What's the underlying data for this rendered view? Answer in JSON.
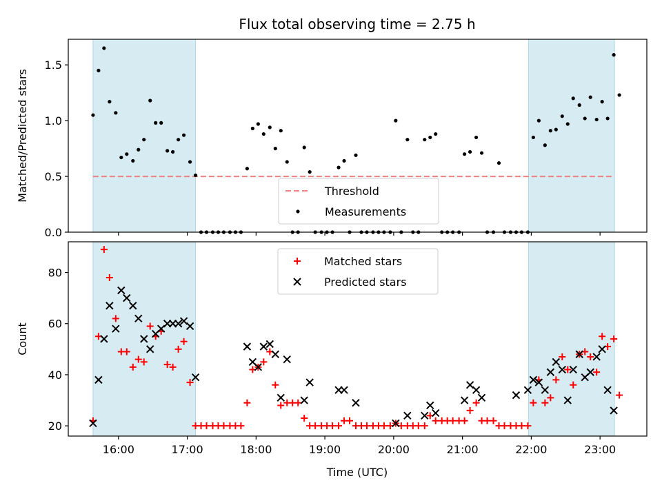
{
  "chart_data": {
    "title": "Flux total observing time = 2.75 h",
    "xlabel": "Time (UTC)",
    "x_ticks": [
      "16:00",
      "17:00",
      "18:00",
      "19:00",
      "20:00",
      "21:00",
      "22:00",
      "23:00"
    ],
    "x_tick_hours": [
      16,
      17,
      18,
      19,
      20,
      21,
      22,
      23
    ],
    "xlim": [
      15.27,
      23.68
    ],
    "shaded_regions": [
      [
        15.63,
        17.12
      ],
      [
        21.96,
        23.21
      ]
    ],
    "shade_color": "#add8e6",
    "panels": [
      {
        "type": "scatter",
        "ylabel": "Matched/Predicted stars",
        "ylim": [
          0,
          1.73
        ],
        "y_ticks": [
          0.0,
          0.5,
          1.0,
          1.5
        ],
        "threshold": {
          "name": "Threshold",
          "value": 0.5,
          "color": "#f08080"
        },
        "legend": {
          "position": "lower-center",
          "entries": [
            "Threshold",
            "Measurements"
          ]
        },
        "series": [
          {
            "name": "Measurements",
            "color": "#000000",
            "x": [
              15.63,
              15.71,
              15.79,
              15.87,
              15.96,
              16.04,
              16.12,
              16.21,
              16.29,
              16.37,
              16.46,
              16.54,
              16.62,
              16.71,
              16.79,
              16.87,
              16.95,
              17.04,
              17.12,
              17.2,
              17.28,
              17.37,
              17.45,
              17.53,
              17.62,
              17.7,
              17.78,
              17.87,
              17.95,
              18.03,
              18.11,
              18.2,
              18.28,
              18.36,
              18.45,
              18.53,
              18.61,
              18.7,
              18.78,
              18.86,
              18.95,
              19.03,
              19.11,
              19.2,
              19.28,
              19.36,
              19.45,
              19.53,
              19.61,
              19.7,
              19.78,
              19.86,
              19.95,
              20.03,
              20.11,
              20.2,
              20.28,
              20.36,
              20.45,
              20.53,
              20.61,
              20.7,
              20.78,
              20.86,
              20.95,
              21.03,
              21.11,
              21.2,
              21.28,
              21.36,
              21.45,
              21.53,
              21.61,
              21.7,
              21.78,
              21.86,
              21.95,
              22.03,
              22.11,
              22.2,
              22.28,
              22.36,
              22.45,
              22.53,
              22.61,
              22.7,
              22.78,
              22.86,
              22.95,
              23.03,
              23.11,
              23.2,
              23.28
            ],
            "y": [
              1.05,
              1.45,
              1.65,
              1.17,
              1.07,
              0.67,
              0.7,
              0.64,
              0.74,
              0.83,
              1.18,
              0.98,
              0.98,
              0.73,
              0.72,
              0.83,
              0.87,
              0.63,
              0.51,
              0,
              0,
              0,
              0,
              0,
              0,
              0,
              0,
              0.57,
              0.93,
              0.97,
              0.88,
              0.94,
              0.75,
              0.91,
              0.63,
              0,
              0,
              0.76,
              0.54,
              0,
              0,
              0,
              0,
              0.58,
              0.64,
              0,
              0.69,
              0,
              0,
              0,
              0,
              0,
              0,
              1.0,
              0,
              0.83,
              0,
              0,
              0.83,
              0.85,
              0.88,
              0,
              0,
              0,
              0,
              0.7,
              0.72,
              0.85,
              0.71,
              0,
              0,
              0.62,
              0,
              0,
              0,
              0,
              0,
              0.85,
              1.0,
              0.78,
              0.91,
              0.92,
              1.04,
              0.97,
              1.2,
              1.14,
              1.02,
              1.21,
              1.01,
              1.17,
              1.02,
              1.59,
              1.23
            ]
          }
        ]
      },
      {
        "type": "scatter",
        "ylabel": "Count",
        "ylim": [
          16,
          92
        ],
        "y_ticks": [
          20,
          40,
          60,
          80
        ],
        "legend": {
          "position": "upper-center",
          "entries": [
            "Matched stars",
            "Predicted stars"
          ]
        },
        "series": [
          {
            "name": "Matched stars",
            "marker": "plus",
            "color": "#ff0000",
            "x": [
              15.63,
              15.71,
              15.79,
              15.87,
              15.96,
              16.04,
              16.12,
              16.21,
              16.29,
              16.37,
              16.46,
              16.54,
              16.62,
              16.71,
              16.79,
              16.87,
              16.95,
              17.04,
              17.12,
              17.2,
              17.28,
              17.37,
              17.45,
              17.53,
              17.62,
              17.7,
              17.78,
              17.87,
              17.95,
              18.03,
              18.11,
              18.2,
              18.28,
              18.36,
              18.45,
              18.53,
              18.61,
              18.7,
              18.78,
              18.86,
              18.95,
              19.03,
              19.11,
              19.2,
              19.28,
              19.36,
              19.45,
              19.53,
              19.61,
              19.7,
              19.78,
              19.86,
              19.95,
              20.03,
              20.11,
              20.2,
              20.28,
              20.36,
              20.45,
              20.53,
              20.61,
              20.7,
              20.78,
              20.86,
              20.95,
              21.03,
              21.11,
              21.2,
              21.28,
              21.36,
              21.45,
              21.53,
              21.61,
              21.7,
              21.78,
              21.86,
              21.95,
              22.03,
              22.11,
              22.2,
              22.28,
              22.36,
              22.45,
              22.53,
              22.61,
              22.7,
              22.78,
              22.86,
              22.95,
              23.03,
              23.11,
              23.2,
              23.28
            ],
            "y": [
              22,
              55,
              89,
              78,
              62,
              49,
              49,
              43,
              46,
              45,
              59,
              55,
              57,
              44,
              43,
              50,
              53,
              37,
              20,
              20,
              20,
              20,
              20,
              20,
              20,
              20,
              20,
              29,
              42,
              43,
              45,
              49,
              36,
              28,
              29,
              29,
              29,
              23,
              20,
              20,
              20,
              20,
              20,
              20,
              22,
              22,
              20,
              20,
              20,
              20,
              20,
              20,
              20,
              21,
              20,
              20,
              20,
              20,
              20,
              24,
              22,
              22,
              22,
              22,
              22,
              22,
              26,
              29,
              22,
              22,
              22,
              20,
              20,
              20,
              20,
              20,
              20,
              29,
              38,
              29,
              31,
              38,
              47,
              42,
              36,
              48,
              49,
              47,
              41,
              55,
              51,
              54,
              32
            ]
          },
          {
            "name": "Predicted stars",
            "marker": "x",
            "color": "#000000",
            "x": [
              15.63,
              15.71,
              15.79,
              15.87,
              15.96,
              16.04,
              16.12,
              16.21,
              16.29,
              16.37,
              16.46,
              16.54,
              16.62,
              16.71,
              16.79,
              16.87,
              16.95,
              17.04,
              17.12,
              17.87,
              17.95,
              18.03,
              18.11,
              18.2,
              18.28,
              18.36,
              18.45,
              18.7,
              18.78,
              19.2,
              19.28,
              19.45,
              20.03,
              20.2,
              20.45,
              20.53,
              20.61,
              21.03,
              21.11,
              21.2,
              21.28,
              21.78,
              21.95,
              22.03,
              22.11,
              22.2,
              22.28,
              22.36,
              22.45,
              22.53,
              22.61,
              22.7,
              22.78,
              22.86,
              22.95,
              23.03,
              23.11,
              23.2
            ],
            "y": [
              21,
              38,
              54,
              67,
              58,
              73,
              70,
              67,
              62,
              54,
              50,
              56,
              58,
              60,
              60,
              60,
              61,
              59,
              39,
              51,
              45,
              43,
              51,
              52,
              48,
              31,
              46,
              30,
              37,
              34,
              34,
              29,
              21,
              24,
              24,
              28,
              25,
              30,
              36,
              34,
              31,
              32,
              34,
              38,
              37,
              34,
              41,
              45,
              42,
              30,
              42,
              48,
              39,
              41,
              47,
              50,
              34,
              26
            ]
          }
        ]
      }
    ]
  }
}
